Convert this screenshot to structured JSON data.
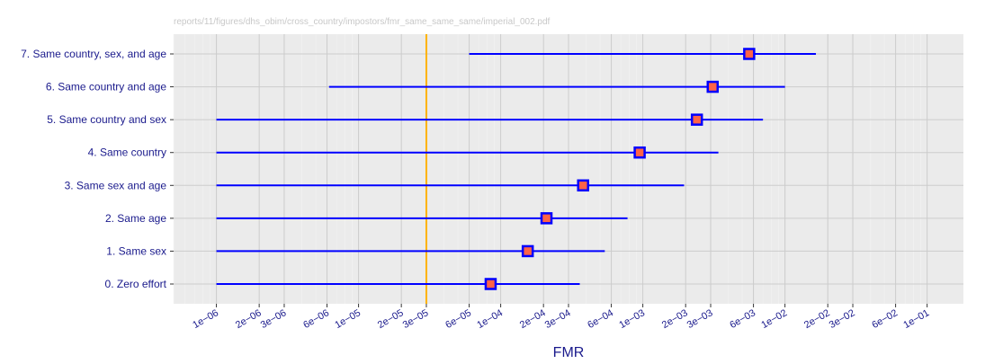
{
  "source_path": "reports/11/figures/dhs_obim/cross_country/impostors/fmr_same_same_same/imperial_002.pdf",
  "colors": {
    "panel": "#ebebeb",
    "grid_major": "#cccccc",
    "grid_minor": "#f3f3f3",
    "series_line": "#0000ff",
    "point_fill": "#ff6347",
    "point_border": "#0000ff",
    "reference_line": "#ffb300",
    "text": "#1a1a8c"
  },
  "chart_data": {
    "type": "scatter",
    "orientation": "horizontal",
    "xscale": "log10",
    "xlabel": "FMR",
    "xlim": [
      5e-07,
      0.18
    ],
    "reference_line": 3e-05,
    "grid": true,
    "xticks": [
      1e-06,
      2e-06,
      3e-06,
      6e-06,
      1e-05,
      2e-05,
      3e-05,
      6e-05,
      0.0001,
      0.0002,
      0.0003,
      0.0006,
      0.001,
      0.002,
      0.003,
      0.006,
      0.01,
      0.02,
      0.03,
      0.06,
      0.1
    ],
    "xtick_labels": [
      "1e−06",
      "2e−06",
      "3e−06",
      "6e−06",
      "1e−05",
      "2e−05",
      "3e−05",
      "6e−05",
      "1e−04",
      "2e−04",
      "3e−04",
      "6e−04",
      "1e−03",
      "2e−03",
      "3e−03",
      "6e−03",
      "1e−02",
      "2e−02",
      "3e−02",
      "6e−02",
      "1e−01"
    ],
    "categories": [
      "0. Zero effort",
      "1. Same sex",
      "2. Same age",
      "3. Same sex and age",
      "4. Same country",
      "5. Same country and sex",
      "6. Same country and age",
      "7. Same country, sex, and age"
    ],
    "values": [
      8.5e-05,
      0.000155,
      0.00021,
      0.00038,
      0.00095,
      0.0024,
      0.0031,
      0.0056
    ],
    "ranges": [
      [
        1e-06,
        0.00036
      ],
      [
        1e-06,
        0.00054
      ],
      [
        1e-06,
        0.00078
      ],
      [
        1e-06,
        0.00195
      ],
      [
        1e-06,
        0.0034
      ],
      [
        1e-06,
        0.007
      ],
      [
        6.2e-06,
        0.01
      ],
      [
        6e-05,
        0.0165
      ]
    ]
  }
}
